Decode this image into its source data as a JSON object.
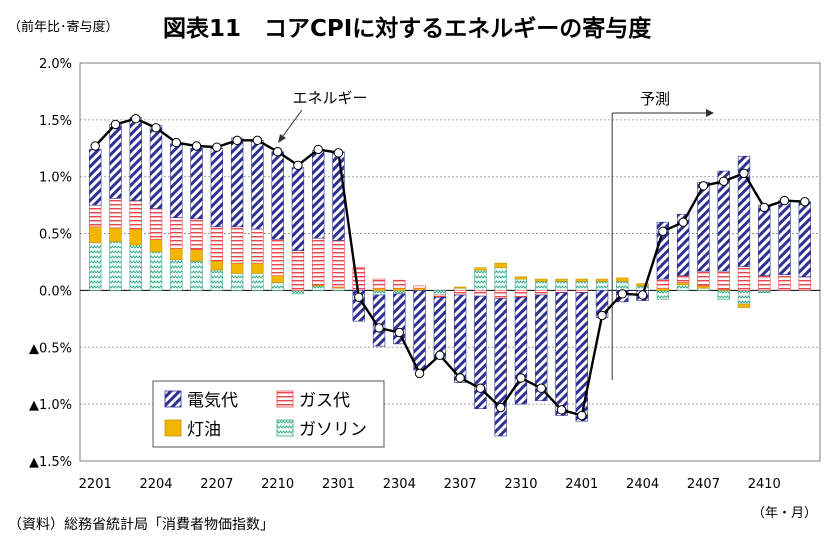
{
  "header": {
    "sublabel": "（前年比･寄与度）",
    "title": "図表11　コアCPIに対するエネルギーの寄与度"
  },
  "footer": {
    "source": "（資料）総務省統計局「消費者物価指数」",
    "units": "（年・月）"
  },
  "colors": {
    "electricity": "#2e3192",
    "gas": "#e8464b",
    "kerosene": "#f2b600",
    "gasoline": "#3aa98a",
    "line": "#000000"
  },
  "chart_data": {
    "type": "bar",
    "stacked": true,
    "ylim": [
      -1.5,
      2.0
    ],
    "ytick_values": [
      -1.5,
      -1.0,
      -0.5,
      0.0,
      0.5,
      1.0,
      1.5,
      2.0
    ],
    "ytick_labels": [
      "▲1.5%",
      "▲1.0%",
      "▲0.5%",
      "0.0%",
      "0.5%",
      "1.0%",
      "1.5%",
      "2.0%"
    ],
    "x_tick_labels": [
      "2201",
      "2204",
      "2207",
      "2210",
      "2301",
      "2304",
      "2307",
      "2310",
      "2401",
      "2404",
      "2407",
      "2410"
    ],
    "categories": [
      "2201",
      "2202",
      "2203",
      "2204",
      "2205",
      "2206",
      "2207",
      "2208",
      "2209",
      "2210",
      "2211",
      "2212",
      "2301",
      "2302",
      "2303",
      "2304",
      "2305",
      "2306",
      "2307",
      "2308",
      "2309",
      "2310",
      "2311",
      "2312",
      "2401",
      "2402",
      "2403",
      "2404",
      "2405",
      "2406",
      "2407",
      "2408",
      "2409",
      "2410",
      "2411",
      "2412"
    ],
    "series": [
      {
        "name": "ガソリン",
        "values": [
          0.42,
          0.43,
          0.4,
          0.34,
          0.27,
          0.26,
          0.18,
          0.15,
          0.15,
          0.07,
          -0.03,
          0.04,
          0.02,
          0.0,
          -0.04,
          -0.03,
          0.0,
          -0.04,
          0.02,
          0.18,
          0.2,
          0.1,
          0.08,
          0.08,
          0.08,
          0.08,
          0.08,
          0.04,
          -0.08,
          0.05,
          0.02,
          -0.08,
          -0.12,
          -0.02,
          0.0,
          0.0
        ]
      },
      {
        "name": "灯油",
        "values": [
          0.14,
          0.12,
          0.14,
          0.11,
          0.1,
          0.1,
          0.08,
          0.09,
          0.09,
          0.06,
          0.0,
          0.01,
          0.01,
          0.0,
          0.02,
          0.02,
          0.02,
          0.0,
          0.01,
          0.02,
          0.04,
          0.02,
          0.02,
          0.02,
          0.02,
          0.02,
          0.03,
          0.02,
          0.02,
          0.02,
          0.02,
          0.01,
          -0.03,
          0.0,
          0.0,
          0.0
        ]
      },
      {
        "name": "ガス代",
        "values": [
          0.19,
          0.26,
          0.25,
          0.27,
          0.27,
          0.27,
          0.3,
          0.32,
          0.3,
          0.32,
          0.35,
          0.41,
          0.41,
          0.2,
          0.08,
          0.07,
          0.02,
          -0.02,
          -0.04,
          -0.05,
          -0.07,
          -0.06,
          -0.04,
          -0.02,
          -0.02,
          0.0,
          0.0,
          0.0,
          0.08,
          0.06,
          0.13,
          0.16,
          0.21,
          0.13,
          0.14,
          0.12
        ]
      },
      {
        "name": "電気代",
        "values": [
          0.49,
          0.65,
          0.73,
          0.73,
          0.65,
          0.62,
          0.69,
          0.78,
          0.78,
          0.77,
          0.73,
          0.77,
          0.78,
          -0.27,
          -0.45,
          -0.44,
          -0.7,
          -0.54,
          -0.77,
          -0.99,
          -1.21,
          -0.94,
          -0.93,
          -1.08,
          -1.13,
          -0.24,
          -0.1,
          -0.09,
          0.5,
          0.54,
          0.78,
          0.88,
          0.97,
          0.62,
          0.65,
          0.66
        ]
      }
    ],
    "line_series": {
      "name": "エネルギー",
      "values": [
        1.27,
        1.46,
        1.51,
        1.43,
        1.3,
        1.27,
        1.26,
        1.32,
        1.32,
        1.22,
        1.1,
        1.24,
        1.21,
        -0.06,
        -0.33,
        -0.37,
        -0.73,
        -0.57,
        -0.77,
        -0.86,
        -1.03,
        -0.77,
        -0.86,
        -1.05,
        -1.1,
        -0.22,
        -0.03,
        -0.04,
        0.52,
        0.6,
        0.92,
        0.96,
        1.03,
        0.73,
        0.79,
        0.78
      ]
    },
    "legend": [
      "電気代",
      "ガス代",
      "灯油",
      "ガソリン"
    ],
    "legend_position": "bottom-left",
    "annotations": {
      "line_label": "エネルギー",
      "forecast_label": "予測",
      "forecast_start": "2403"
    },
    "grid": true
  }
}
